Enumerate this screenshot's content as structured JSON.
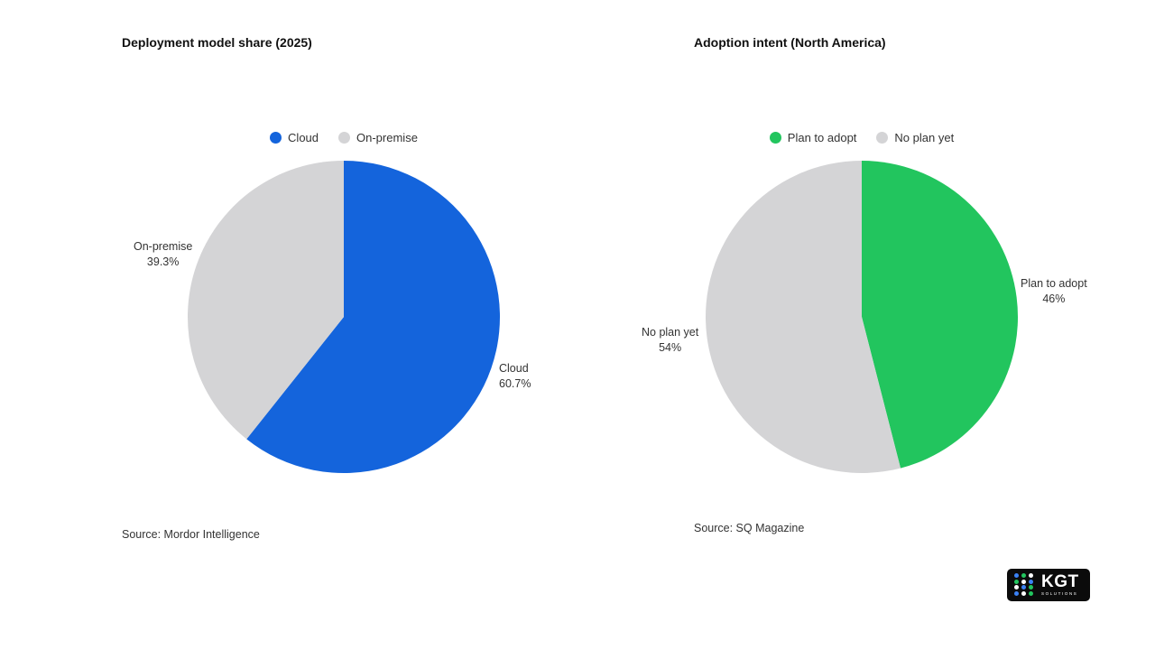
{
  "chart_data": [
    {
      "type": "pie",
      "title": "Deployment model share (2025)",
      "categories": [
        "Cloud",
        "On-premise"
      ],
      "values": [
        60.7,
        39.3
      ],
      "value_labels": [
        "60.7%",
        "39.3%"
      ],
      "colors": [
        "#1464dc",
        "#d4d4d6"
      ],
      "legend": [
        "Cloud",
        "On-premise"
      ],
      "legend_position": "top-center",
      "source": "Source: Mordor Intelligence"
    },
    {
      "type": "pie",
      "title": "Adoption intent (North America)",
      "categories": [
        "Plan to adopt",
        "No plan yet"
      ],
      "values": [
        46,
        54
      ],
      "value_labels": [
        "46%",
        "54%"
      ],
      "colors": [
        "#22c55e",
        "#d4d4d6"
      ],
      "legend": [
        "Plan to adopt",
        "No plan yet"
      ],
      "legend_position": "top-center",
      "source": "Source: SQ Magazine"
    }
  ],
  "logo": {
    "text": "KGT",
    "subtext": "SOLUTIONS",
    "dot_colors": [
      "#3b82f6",
      "#22c55e",
      "#ffffff"
    ]
  }
}
